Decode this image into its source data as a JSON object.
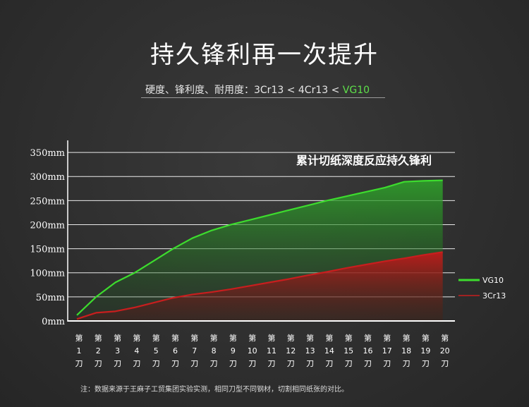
{
  "header": {
    "title": "持久锋利再一次提升",
    "subtitle_prefix": "硬度、锋利度、耐用度：3Cr13 < 4Cr13 < ",
    "subtitle_highlight": "VG10"
  },
  "note": "注：数据来源于王麻子工贸集团实验实测，相同刀型不同钢材，切割相同纸张的对比。",
  "colors": {
    "vg10": "#3ddc2e",
    "cr13": "#c81e1e",
    "grid": "#ffffff"
  },
  "chart_data": {
    "type": "area",
    "title": "累计切纸深度反应持久锋利",
    "ylim": [
      0,
      375
    ],
    "yticks": [
      {
        "value": 0,
        "label": "0mm"
      },
      {
        "value": 50,
        "label": "50mm"
      },
      {
        "value": 100,
        "label": "100mm"
      },
      {
        "value": 150,
        "label": "150mm"
      },
      {
        "value": 200,
        "label": "200mm"
      },
      {
        "value": 250,
        "label": "250mm"
      },
      {
        "value": 300,
        "label": "300mm"
      },
      {
        "value": 350,
        "label": "350mm"
      }
    ],
    "categories": [
      [
        "第",
        "1",
        "刀"
      ],
      [
        "第",
        "2",
        "刀"
      ],
      [
        "第",
        "3",
        "刀"
      ],
      [
        "第",
        "4",
        "刀"
      ],
      [
        "第",
        "5",
        "刀"
      ],
      [
        "第",
        "6",
        "刀"
      ],
      [
        "第",
        "7",
        "刀"
      ],
      [
        "第",
        "8",
        "刀"
      ],
      [
        "第",
        "9",
        "刀"
      ],
      [
        "第",
        "10",
        "刀"
      ],
      [
        "第",
        "11",
        "刀"
      ],
      [
        "第",
        "12",
        "刀"
      ],
      [
        "第",
        "13",
        "刀"
      ],
      [
        "第",
        "14",
        "刀"
      ],
      [
        "第",
        "15",
        "刀"
      ],
      [
        "第",
        "16",
        "刀"
      ],
      [
        "第",
        "17",
        "刀"
      ],
      [
        "第",
        "18",
        "刀"
      ],
      [
        "第",
        "19",
        "刀"
      ],
      [
        "第",
        "20",
        "刀"
      ]
    ],
    "series": [
      {
        "name": "VG10",
        "key": "vg10",
        "values": [
          12,
          50,
          80,
          100,
          125,
          150,
          172,
          188,
          200,
          210,
          220,
          230,
          240,
          250,
          259,
          268,
          277,
          289,
          291,
          292
        ]
      },
      {
        "name": "3Cr13",
        "key": "cr13",
        "values": [
          4,
          17,
          20,
          28,
          38,
          48,
          55,
          60,
          66,
          73,
          80,
          87,
          95,
          102,
          110,
          117,
          124,
          130,
          137,
          143
        ]
      }
    ]
  }
}
